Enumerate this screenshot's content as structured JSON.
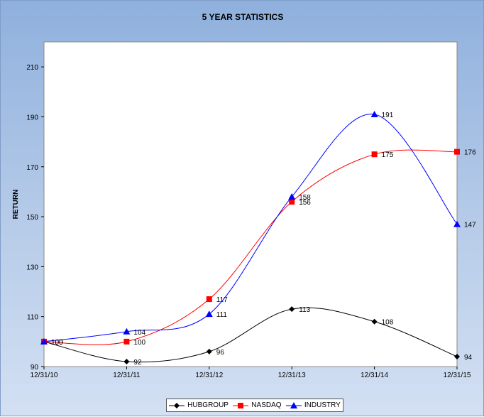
{
  "chart_data": {
    "type": "line",
    "title": "5 YEAR STATISTICS",
    "xlabel": "",
    "ylabel": "RETURN",
    "categories": [
      "12/31/10",
      "12/31/11",
      "12/31/12",
      "12/31/13",
      "12/31/14",
      "12/31/15"
    ],
    "ylim": [
      90,
      220
    ],
    "yticks": [
      90,
      110,
      130,
      150,
      170,
      190,
      210
    ],
    "series": [
      {
        "name": "HUBGROUP",
        "values": [
          100,
          92,
          96,
          113,
          108,
          94
        ],
        "color": "#000000",
        "marker": "diamond",
        "labels": [
          "100",
          "92",
          "96",
          "113",
          "108",
          "94"
        ]
      },
      {
        "name": "NASDAQ",
        "values": [
          100,
          100,
          117,
          156,
          175,
          176
        ],
        "color": "#ff0000",
        "marker": "square",
        "labels": [
          "100",
          "100",
          "117",
          "156",
          "175",
          "176"
        ]
      },
      {
        "name": "INDUSTRY",
        "values": [
          100,
          104,
          111,
          158,
          191,
          147
        ],
        "color": "#0000ff",
        "marker": "triangle",
        "labels": [
          "100",
          "104",
          "111",
          "158",
          "191",
          "147"
        ]
      }
    ],
    "grid": false,
    "legend_position": "bottom"
  }
}
